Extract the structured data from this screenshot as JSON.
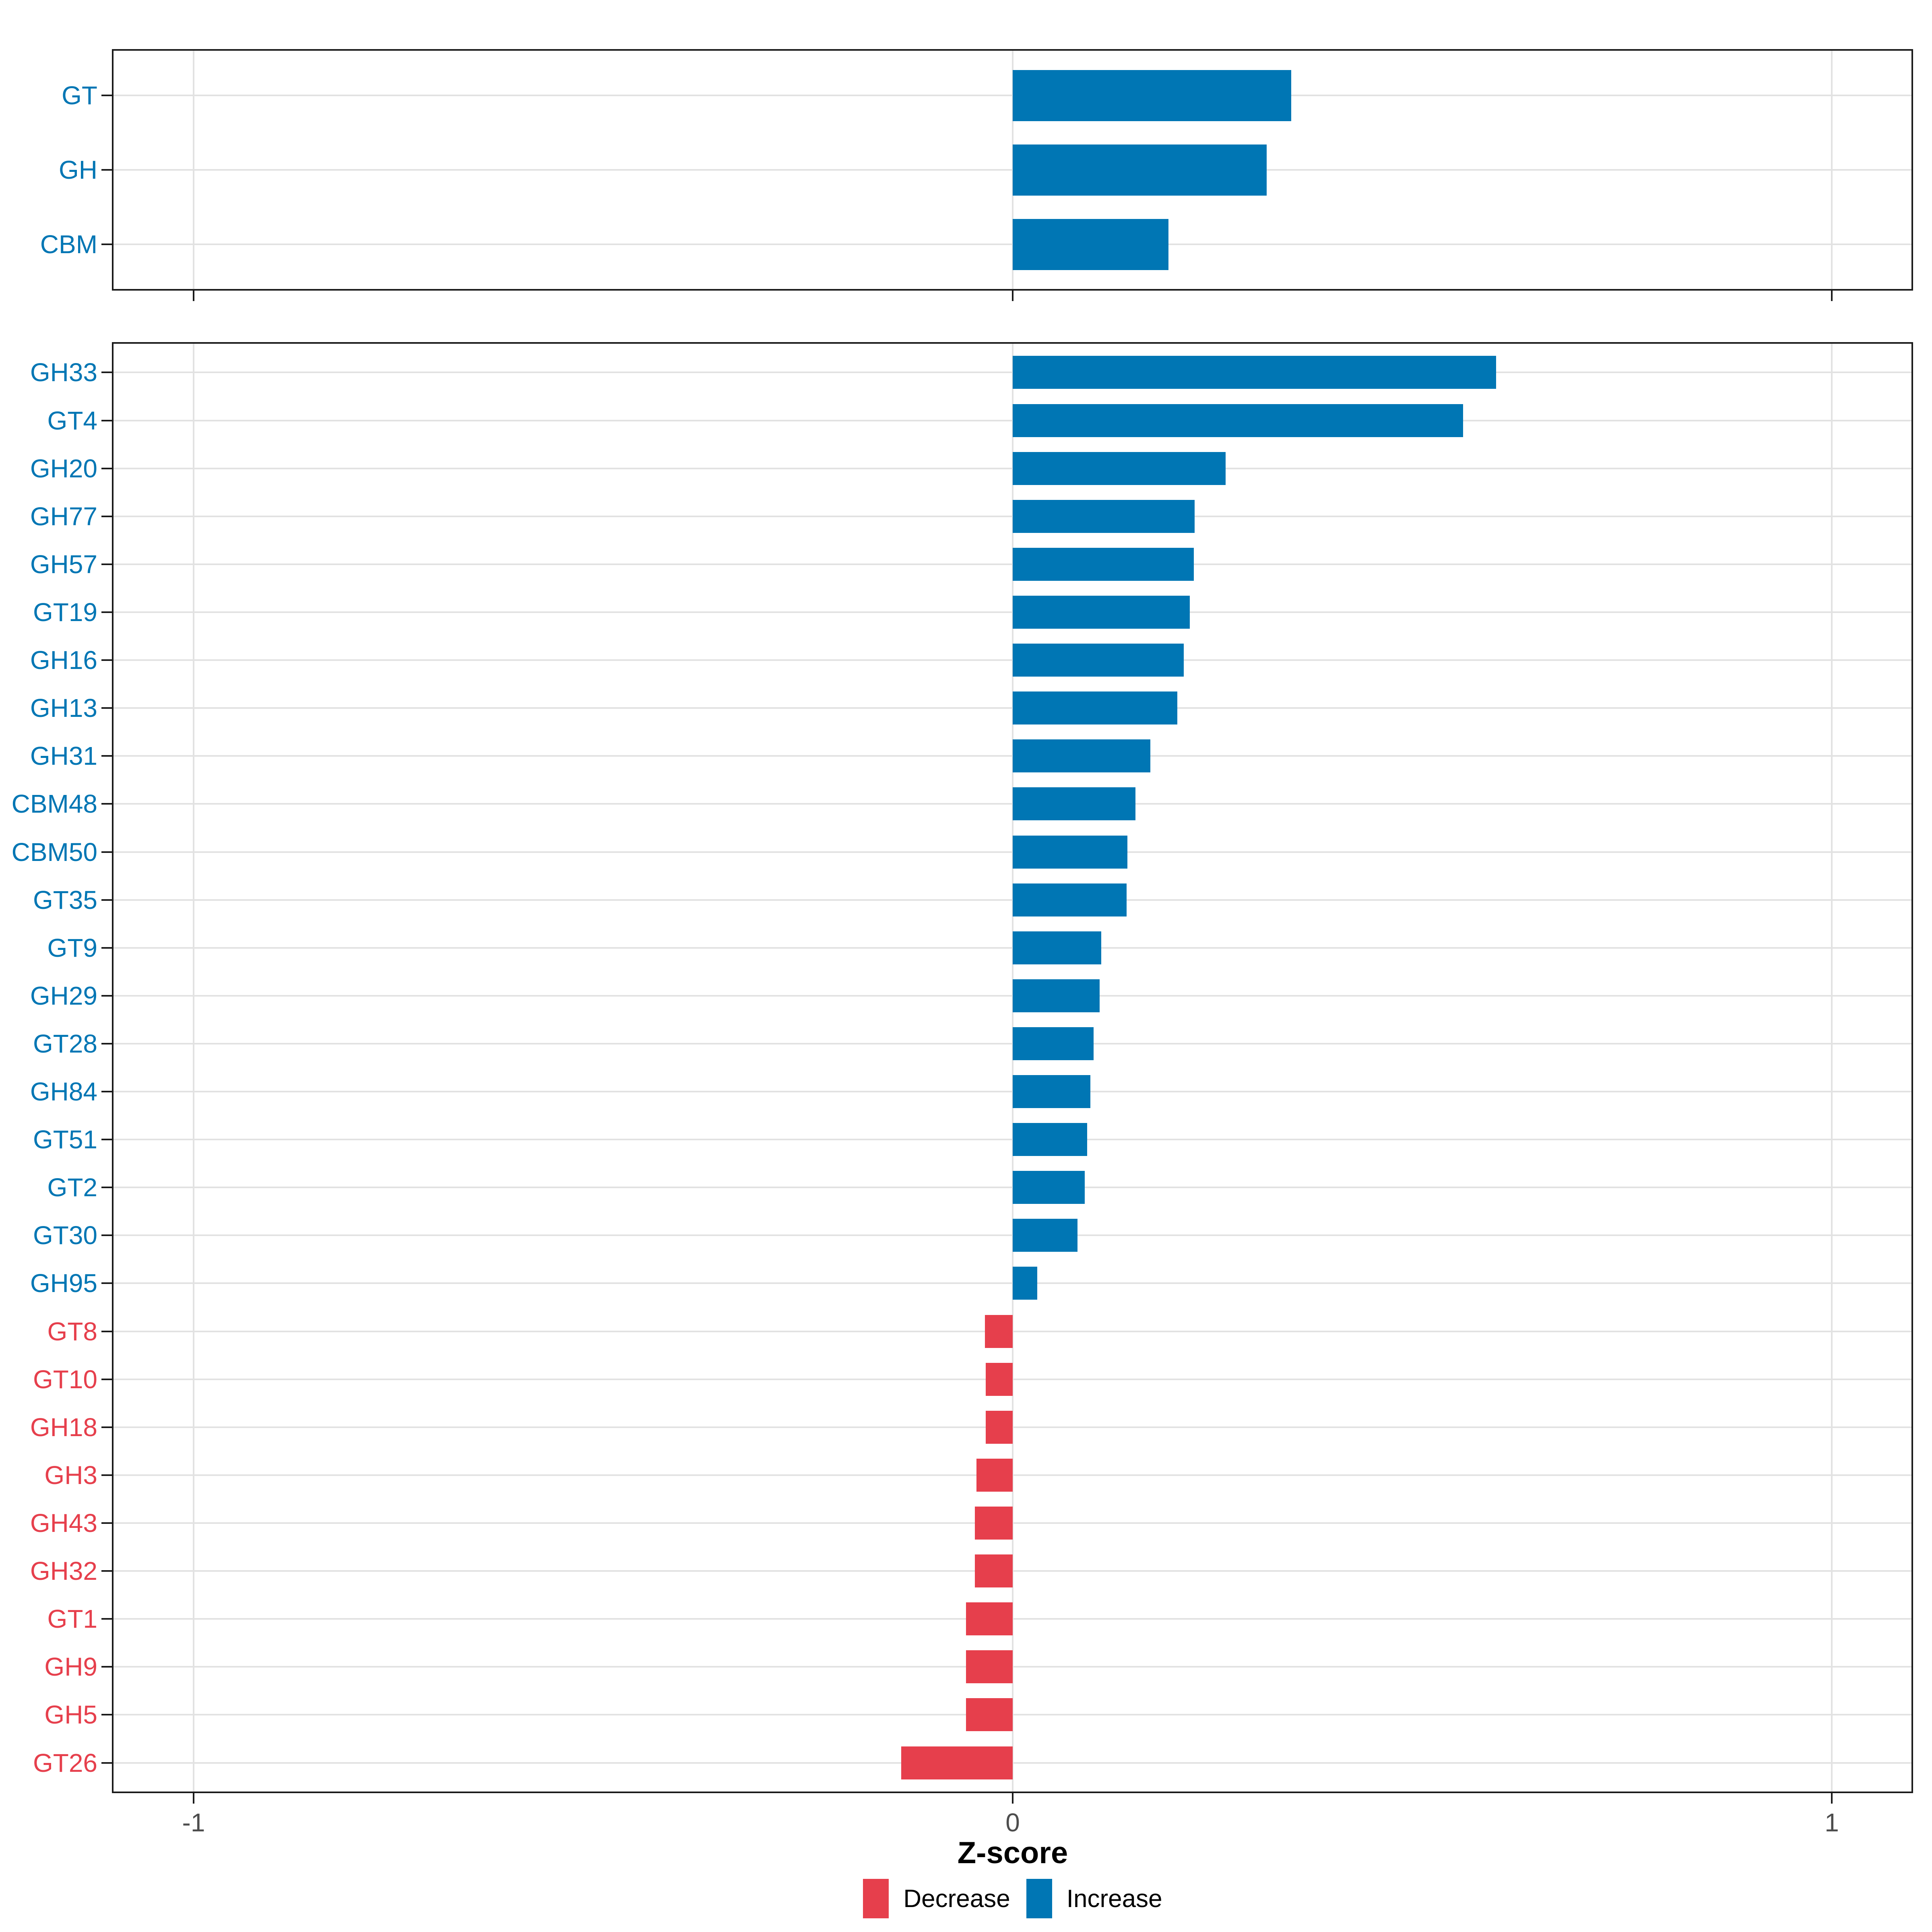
{
  "chart_data": [
    {
      "id": "overview",
      "type": "bar",
      "orientation": "horizontal",
      "title": "",
      "xlabel": "",
      "ylabel": "",
      "xlim": [
        -1.1,
        1.1
      ],
      "grid": "major vertical gridlines at -1, 0, 1; horizontal gridline per category",
      "legend_position": "none",
      "categories": [
        "GT",
        "GH",
        "CBM"
      ],
      "values": [
        0.34,
        0.31,
        0.19
      ],
      "directions": [
        "Increase",
        "Increase",
        "Increase"
      ]
    },
    {
      "id": "families",
      "type": "bar",
      "orientation": "horizontal",
      "title": "",
      "xlabel": "Z-score",
      "ylabel": "",
      "xlim": [
        -1.1,
        1.1
      ],
      "grid": "major vertical gridlines at -1, 0, 1; horizontal gridline per category",
      "legend_position": "bottom",
      "categories": [
        "GH33",
        "GT4",
        "GH20",
        "GH77",
        "GH57",
        "GT19",
        "GH16",
        "GH13",
        "GH31",
        "CBM48",
        "CBM50",
        "GT35",
        "GT9",
        "GH29",
        "GT28",
        "GH84",
        "GT51",
        "GT2",
        "GT30",
        "GH95",
        "GT8",
        "GT10",
        "GH18",
        "GH3",
        "GH43",
        "GH32",
        "GT1",
        "GH9",
        "GH5",
        "GT26"
      ],
      "values": [
        0.59,
        0.55,
        0.26,
        0.222,
        0.221,
        0.216,
        0.209,
        0.201,
        0.168,
        0.15,
        0.14,
        0.139,
        0.108,
        0.106,
        0.099,
        0.095,
        0.091,
        0.088,
        0.079,
        0.03,
        -0.034,
        -0.033,
        -0.033,
        -0.044,
        -0.046,
        -0.046,
        -0.057,
        -0.057,
        -0.057,
        -0.136
      ],
      "directions": [
        "Increase",
        "Increase",
        "Increase",
        "Increase",
        "Increase",
        "Increase",
        "Increase",
        "Increase",
        "Increase",
        "Increase",
        "Increase",
        "Increase",
        "Increase",
        "Increase",
        "Increase",
        "Increase",
        "Increase",
        "Increase",
        "Increase",
        "Increase",
        "Decrease",
        "Decrease",
        "Decrease",
        "Decrease",
        "Decrease",
        "Decrease",
        "Decrease",
        "Decrease",
        "Decrease",
        "Decrease"
      ]
    }
  ],
  "axis": {
    "xlabel": "Z-score",
    "tick_labels": [
      "-1",
      "0",
      "1"
    ],
    "tick_values": [
      -1,
      0,
      1
    ]
  },
  "legend": {
    "items": [
      {
        "label": "Decrease",
        "color": "#E63F4C"
      },
      {
        "label": "Increase",
        "color": "#0076B4"
      }
    ]
  },
  "colors": {
    "increase": "#0076B4",
    "decrease": "#E63F4C",
    "grid": "#E2E2E2",
    "panel_border": "#1A1A1A",
    "tick": "#1A1A1A",
    "axis_tick_text": "#4D4D4D",
    "background": "#FFFFFF"
  }
}
